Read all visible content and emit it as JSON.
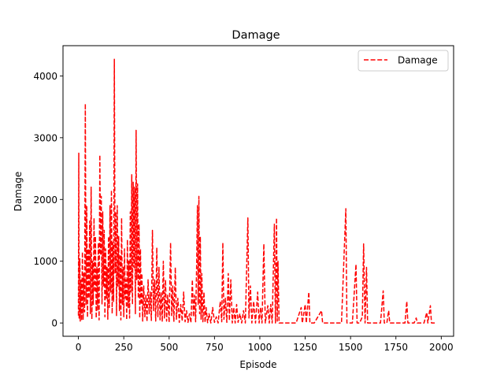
{
  "chart_data": {
    "type": "line",
    "title": "Damage",
    "xlabel": "Episode",
    "ylabel": "Damage",
    "xlim": [
      -85,
      2068
    ],
    "ylim": [
      -215,
      4490
    ],
    "xticks": [
      0,
      250,
      500,
      750,
      1000,
      1250,
      1500,
      1750,
      2000
    ],
    "yticks": [
      0,
      1000,
      2000,
      3000,
      4000
    ],
    "grid": false,
    "legend": "top-right",
    "line_color": "#ff0000",
    "line_style": "dashed",
    "series": [
      {
        "name": "Damage",
        "color": "#ff0000",
        "points": [
          [
            0,
            120
          ],
          [
            2,
            2750
          ],
          [
            4,
            60
          ],
          [
            6,
            900
          ],
          [
            8,
            1040
          ],
          [
            10,
            30
          ],
          [
            14,
            700
          ],
          [
            18,
            40
          ],
          [
            22,
            1150
          ],
          [
            26,
            50
          ],
          [
            30,
            800
          ],
          [
            34,
            180
          ],
          [
            38,
            3550
          ],
          [
            42,
            300
          ],
          [
            46,
            1900
          ],
          [
            50,
            90
          ],
          [
            54,
            1200
          ],
          [
            58,
            400
          ],
          [
            62,
            1650
          ],
          [
            66,
            150
          ],
          [
            70,
            2200
          ],
          [
            74,
            60
          ],
          [
            78,
            1000
          ],
          [
            82,
            300
          ],
          [
            86,
            1700
          ],
          [
            90,
            500
          ],
          [
            94,
            1400
          ],
          [
            98,
            80
          ],
          [
            102,
            900
          ],
          [
            106,
            200
          ],
          [
            110,
            1300
          ],
          [
            114,
            50
          ],
          [
            118,
            2720
          ],
          [
            122,
            1100
          ],
          [
            126,
            2050
          ],
          [
            130,
            300
          ],
          [
            134,
            1800
          ],
          [
            138,
            600
          ],
          [
            142,
            1500
          ],
          [
            146,
            100
          ],
          [
            150,
            1200
          ],
          [
            154,
            400
          ],
          [
            158,
            900
          ],
          [
            162,
            60
          ],
          [
            166,
            1400
          ],
          [
            170,
            250
          ],
          [
            174,
            1900
          ],
          [
            178,
            500
          ],
          [
            182,
            2150
          ],
          [
            186,
            150
          ],
          [
            190,
            1300
          ],
          [
            194,
            350
          ],
          [
            198,
            4270
          ],
          [
            202,
            800
          ],
          [
            206,
            1800
          ],
          [
            210,
            120
          ],
          [
            214,
            1900
          ],
          [
            218,
            600
          ],
          [
            222,
            1400
          ],
          [
            226,
            200
          ],
          [
            230,
            1100
          ],
          [
            234,
            50
          ],
          [
            238,
            1700
          ],
          [
            242,
            300
          ],
          [
            246,
            900
          ],
          [
            250,
            100
          ],
          [
            254,
            1200
          ],
          [
            258,
            400
          ],
          [
            262,
            700
          ],
          [
            266,
            50
          ],
          [
            270,
            1350
          ],
          [
            274,
            250
          ],
          [
            278,
            1000
          ],
          [
            282,
            80
          ],
          [
            286,
            1800
          ],
          [
            290,
            500
          ],
          [
            294,
            2400
          ],
          [
            298,
            300
          ],
          [
            302,
            2280
          ],
          [
            306,
            900
          ],
          [
            310,
            2200
          ],
          [
            314,
            150
          ],
          [
            318,
            3120
          ],
          [
            322,
            700
          ],
          [
            326,
            2250
          ],
          [
            330,
            400
          ],
          [
            334,
            1600
          ],
          [
            338,
            80
          ],
          [
            342,
            1200
          ],
          [
            346,
            300
          ],
          [
            350,
            800
          ],
          [
            354,
            30
          ],
          [
            360,
            600
          ],
          [
            366,
            100
          ],
          [
            372,
            450
          ],
          [
            378,
            20
          ],
          [
            384,
            700
          ],
          [
            390,
            150
          ],
          [
            396,
            500
          ],
          [
            402,
            40
          ],
          [
            408,
            1500
          ],
          [
            414,
            200
          ],
          [
            420,
            700
          ],
          [
            426,
            30
          ],
          [
            432,
            1220
          ],
          [
            438,
            100
          ],
          [
            444,
            900
          ],
          [
            450,
            50
          ],
          [
            456,
            500
          ],
          [
            462,
            20
          ],
          [
            468,
            1000
          ],
          [
            474,
            80
          ],
          [
            480,
            700
          ],
          [
            486,
            30
          ],
          [
            492,
            450
          ],
          [
            500,
            10
          ],
          [
            508,
            1300
          ],
          [
            514,
            120
          ],
          [
            520,
            600
          ],
          [
            526,
            20
          ],
          [
            534,
            900
          ],
          [
            540,
            60
          ],
          [
            548,
            400
          ],
          [
            556,
            10
          ],
          [
            564,
            300
          ],
          [
            572,
            30
          ],
          [
            580,
            500
          ],
          [
            588,
            20
          ],
          [
            596,
            200
          ],
          [
            604,
            10
          ],
          [
            612,
            150
          ],
          [
            620,
            5
          ],
          [
            628,
            700
          ],
          [
            634,
            100
          ],
          [
            640,
            450
          ],
          [
            646,
            20
          ],
          [
            652,
            1000
          ],
          [
            656,
            1900
          ],
          [
            660,
            300
          ],
          [
            664,
            2050
          ],
          [
            668,
            150
          ],
          [
            672,
            1400
          ],
          [
            676,
            60
          ],
          [
            680,
            800
          ],
          [
            686,
            20
          ],
          [
            692,
            500
          ],
          [
            698,
            10
          ],
          [
            704,
            250
          ],
          [
            712,
            5
          ],
          [
            720,
            150
          ],
          [
            730,
            0
          ],
          [
            740,
            250
          ],
          [
            750,
            10
          ],
          [
            760,
            100
          ],
          [
            770,
            0
          ],
          [
            782,
            350
          ],
          [
            790,
            20
          ],
          [
            796,
            1300
          ],
          [
            802,
            60
          ],
          [
            810,
            400
          ],
          [
            818,
            10
          ],
          [
            826,
            800
          ],
          [
            832,
            40
          ],
          [
            840,
            700
          ],
          [
            848,
            0
          ],
          [
            856,
            250
          ],
          [
            864,
            0
          ],
          [
            872,
            300
          ],
          [
            880,
            10
          ],
          [
            890,
            150
          ],
          [
            900,
            0
          ],
          [
            910,
            200
          ],
          [
            920,
            0
          ],
          [
            934,
            1700
          ],
          [
            940,
            80
          ],
          [
            948,
            600
          ],
          [
            956,
            0
          ],
          [
            966,
            350
          ],
          [
            976,
            0
          ],
          [
            988,
            500
          ],
          [
            996,
            0
          ],
          [
            1004,
            250
          ],
          [
            1012,
            0
          ],
          [
            1022,
            1280
          ],
          [
            1030,
            0
          ],
          [
            1044,
            280
          ],
          [
            1052,
            0
          ],
          [
            1060,
            300
          ],
          [
            1068,
            0
          ],
          [
            1080,
            1600
          ],
          [
            1086,
            0
          ],
          [
            1092,
            1700
          ],
          [
            1096,
            30
          ],
          [
            1100,
            1000
          ],
          [
            1106,
            0
          ],
          [
            1130,
            0
          ],
          [
            1160,
            0
          ],
          [
            1200,
            0
          ],
          [
            1228,
            250
          ],
          [
            1234,
            0
          ],
          [
            1250,
            300
          ],
          [
            1256,
            0
          ],
          [
            1270,
            500
          ],
          [
            1276,
            0
          ],
          [
            1300,
            0
          ],
          [
            1340,
            200
          ],
          [
            1346,
            0
          ],
          [
            1380,
            0
          ],
          [
            1420,
            0
          ],
          [
            1450,
            0
          ],
          [
            1474,
            1850
          ],
          [
            1480,
            0
          ],
          [
            1510,
            0
          ],
          [
            1530,
            950
          ],
          [
            1536,
            0
          ],
          [
            1550,
            0
          ],
          [
            1565,
            100
          ],
          [
            1572,
            1280
          ],
          [
            1580,
            0
          ],
          [
            1588,
            900
          ],
          [
            1594,
            0
          ],
          [
            1615,
            0
          ],
          [
            1640,
            0
          ],
          [
            1665,
            0
          ],
          [
            1680,
            520
          ],
          [
            1686,
            0
          ],
          [
            1700,
            0
          ],
          [
            1710,
            200
          ],
          [
            1716,
            0
          ],
          [
            1740,
            0
          ],
          [
            1770,
            0
          ],
          [
            1800,
            0
          ],
          [
            1810,
            350
          ],
          [
            1816,
            0
          ],
          [
            1830,
            0
          ],
          [
            1850,
            0
          ],
          [
            1862,
            80
          ],
          [
            1868,
            0
          ],
          [
            1885,
            0
          ],
          [
            1905,
            0
          ],
          [
            1920,
            170
          ],
          [
            1926,
            0
          ],
          [
            1940,
            280
          ],
          [
            1946,
            0
          ],
          [
            1960,
            0
          ],
          [
            1972,
            0
          ]
        ]
      }
    ]
  }
}
